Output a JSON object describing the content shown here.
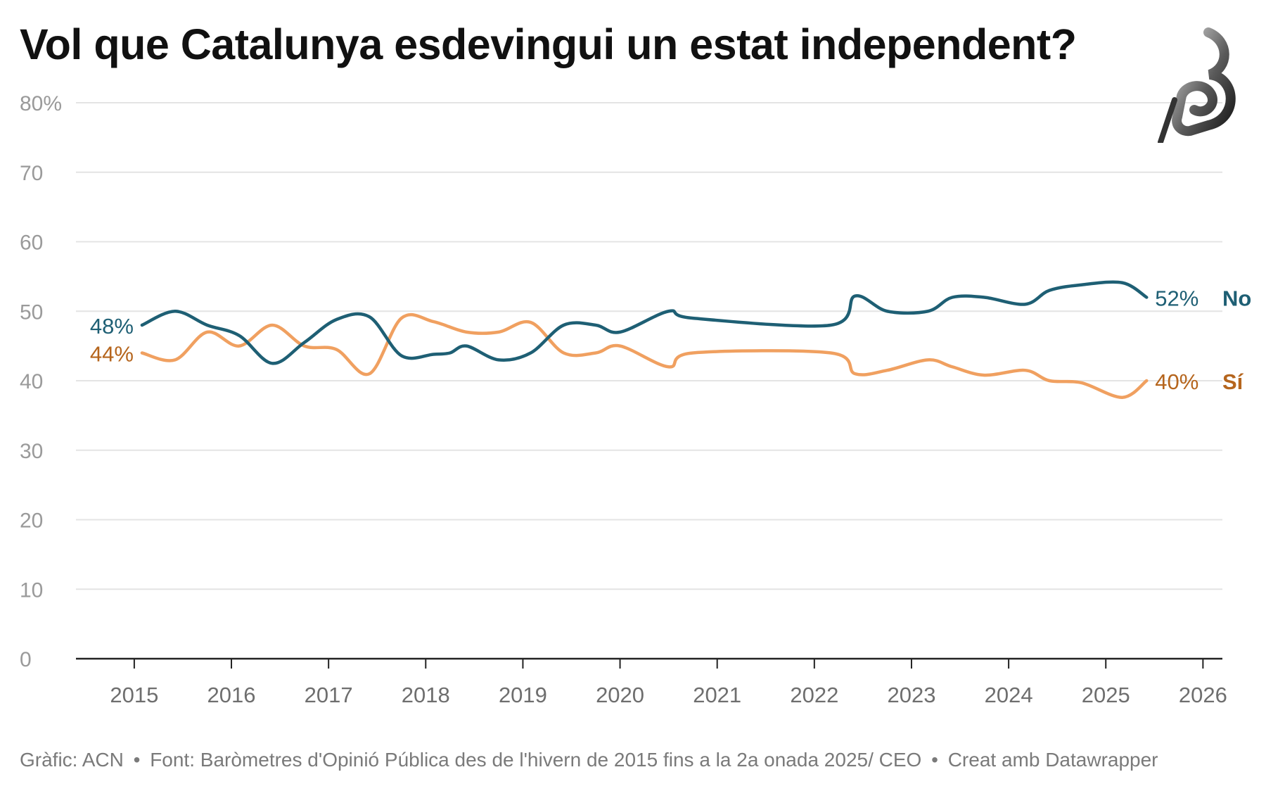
{
  "chart_data": {
    "type": "line",
    "title": "Vol que Catalunya esdevingui un estat independent?",
    "y_axis": {
      "ticks": [
        0,
        10,
        20,
        30,
        40,
        50,
        60,
        70,
        80
      ],
      "tick_labels": [
        "0",
        "10",
        "20",
        "30",
        "40",
        "50",
        "60",
        "70",
        "80%"
      ],
      "ylim": [
        0,
        80
      ]
    },
    "x_axis": {
      "ticks": [
        2015,
        2016,
        2017,
        2018,
        2019,
        2020,
        2021,
        2022,
        2023,
        2024,
        2025,
        2026
      ],
      "tick_labels": [
        "2015",
        "2016",
        "2017",
        "2018",
        "2019",
        "2020",
        "2021",
        "2022",
        "2023",
        "2024",
        "2025",
        "2026"
      ],
      "xlim": [
        2014.4,
        2026.2
      ]
    },
    "grid": true,
    "series": [
      {
        "name": "No",
        "color": "#1e5f74",
        "start_label": "48%",
        "end_label": "52%",
        "x": [
          2015.08,
          2015.42,
          2015.75,
          2016.08,
          2016.42,
          2016.75,
          2017.08,
          2017.42,
          2017.75,
          2018.08,
          2018.25,
          2018.42,
          2018.75,
          2019.08,
          2019.42,
          2019.75,
          2020.0,
          2020.5,
          2020.75,
          2022.17,
          2022.42,
          2022.75,
          2023.17,
          2023.42,
          2023.75,
          2024.17,
          2024.42,
          2024.75,
          2025.17,
          2025.42
        ],
        "values": [
          48,
          50,
          48,
          46.5,
          42.5,
          45.5,
          48.8,
          49.2,
          43.6,
          43.8,
          44,
          45,
          43,
          44,
          48,
          48,
          47,
          50,
          49,
          48,
          52.2,
          50,
          50,
          52,
          52,
          51,
          53,
          53.8,
          54.1,
          52
        ]
      },
      {
        "name": "Sí",
        "color": "#f0a060",
        "label_color": "#b5651d",
        "start_label": "44%",
        "end_label": "40%",
        "x": [
          2015.08,
          2015.42,
          2015.75,
          2016.08,
          2016.42,
          2016.75,
          2017.08,
          2017.42,
          2017.75,
          2018.08,
          2018.42,
          2018.75,
          2019.08,
          2019.42,
          2019.75,
          2020.0,
          2020.5,
          2020.75,
          2022.17,
          2022.42,
          2022.75,
          2023.17,
          2023.42,
          2023.75,
          2024.17,
          2024.42,
          2024.75,
          2025.17,
          2025.42
        ],
        "values": [
          44,
          43,
          47,
          45,
          48,
          45,
          44.5,
          41,
          49,
          48.5,
          47,
          47,
          48.4,
          44,
          44,
          45,
          42,
          44,
          44,
          41,
          41.5,
          43,
          42,
          40.8,
          41.5,
          40,
          39.7,
          37.6,
          40
        ]
      }
    ]
  },
  "footer": {
    "credit": "Gràfic: ACN",
    "separator": "•",
    "source": "Font: Baròmetres d'Opinió Pública des de l'hivern de 2015 fins a la 2a onada 2025/ CEO",
    "tool": "Creat amb Datawrapper"
  }
}
